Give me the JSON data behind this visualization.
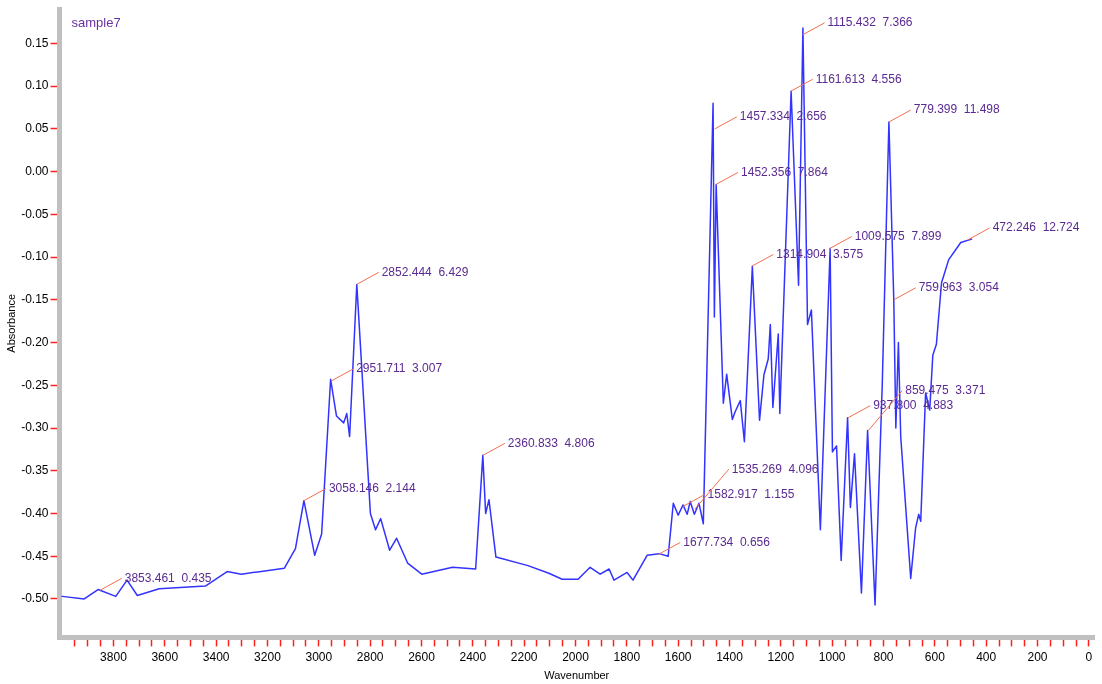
{
  "chart_data": {
    "type": "line",
    "title": "sample7",
    "xlabel": "Wavenumber",
    "ylabel": "Absorbance",
    "xlim": [
      4010,
      -20
    ],
    "ylim": [
      -0.545,
      0.19
    ],
    "xticks": [
      {
        "value": 3950,
        "label": null
      },
      {
        "value": 3900,
        "label": null
      },
      {
        "value": 3850,
        "label": null
      },
      {
        "value": 3800,
        "label": "3800"
      },
      {
        "value": 3750,
        "label": null
      },
      {
        "value": 3700,
        "label": null
      },
      {
        "value": 3650,
        "label": null
      },
      {
        "value": 3600,
        "label": "3600"
      },
      {
        "value": 3550,
        "label": null
      },
      {
        "value": 3500,
        "label": null
      },
      {
        "value": 3450,
        "label": null
      },
      {
        "value": 3400,
        "label": "3400"
      },
      {
        "value": 3350,
        "label": null
      },
      {
        "value": 3300,
        "label": null
      },
      {
        "value": 3250,
        "label": null
      },
      {
        "value": 3200,
        "label": "3200"
      },
      {
        "value": 3150,
        "label": null
      },
      {
        "value": 3100,
        "label": null
      },
      {
        "value": 3050,
        "label": null
      },
      {
        "value": 3000,
        "label": "3000"
      },
      {
        "value": 2950,
        "label": null
      },
      {
        "value": 2900,
        "label": null
      },
      {
        "value": 2850,
        "label": null
      },
      {
        "value": 2800,
        "label": "2800"
      },
      {
        "value": 2750,
        "label": null
      },
      {
        "value": 2700,
        "label": null
      },
      {
        "value": 2650,
        "label": null
      },
      {
        "value": 2600,
        "label": "2600"
      },
      {
        "value": 2550,
        "label": null
      },
      {
        "value": 2500,
        "label": null
      },
      {
        "value": 2450,
        "label": null
      },
      {
        "value": 2400,
        "label": "2400"
      },
      {
        "value": 2350,
        "label": null
      },
      {
        "value": 2300,
        "label": null
      },
      {
        "value": 2250,
        "label": null
      },
      {
        "value": 2200,
        "label": "2200"
      },
      {
        "value": 2150,
        "label": null
      },
      {
        "value": 2100,
        "label": null
      },
      {
        "value": 2050,
        "label": null
      },
      {
        "value": 2000,
        "label": "2000"
      },
      {
        "value": 1950,
        "label": null
      },
      {
        "value": 1900,
        "label": null
      },
      {
        "value": 1850,
        "label": null
      },
      {
        "value": 1800,
        "label": "1800"
      },
      {
        "value": 1750,
        "label": null
      },
      {
        "value": 1700,
        "label": null
      },
      {
        "value": 1650,
        "label": null
      },
      {
        "value": 1600,
        "label": "1600"
      },
      {
        "value": 1550,
        "label": null
      },
      {
        "value": 1500,
        "label": null
      },
      {
        "value": 1450,
        "label": null
      },
      {
        "value": 1400,
        "label": "1400"
      },
      {
        "value": 1350,
        "label": null
      },
      {
        "value": 1300,
        "label": null
      },
      {
        "value": 1250,
        "label": null
      },
      {
        "value": 1200,
        "label": "1200"
      },
      {
        "value": 1150,
        "label": null
      },
      {
        "value": 1100,
        "label": null
      },
      {
        "value": 1050,
        "label": null
      },
      {
        "value": 1000,
        "label": "1000"
      },
      {
        "value": 950,
        "label": null
      },
      {
        "value": 900,
        "label": null
      },
      {
        "value": 850,
        "label": null
      },
      {
        "value": 800,
        "label": "800"
      },
      {
        "value": 750,
        "label": null
      },
      {
        "value": 700,
        "label": null
      },
      {
        "value": 650,
        "label": null
      },
      {
        "value": 600,
        "label": "600"
      },
      {
        "value": 550,
        "label": null
      },
      {
        "value": 500,
        "label": null
      },
      {
        "value": 450,
        "label": null
      },
      {
        "value": 400,
        "label": "400"
      },
      {
        "value": 350,
        "label": null
      },
      {
        "value": 300,
        "label": null
      },
      {
        "value": 250,
        "label": null
      },
      {
        "value": 200,
        "label": "200"
      },
      {
        "value": 150,
        "label": null
      },
      {
        "value": 100,
        "label": null
      },
      {
        "value": 50,
        "label": null
      },
      {
        "value": 0,
        "label": "0"
      }
    ],
    "yticks": [
      {
        "value": 0.15,
        "label": "0.15"
      },
      {
        "value": 0.1,
        "label": "0.10"
      },
      {
        "value": 0.05,
        "label": "0.05"
      },
      {
        "value": 0,
        "label": "0.00"
      },
      {
        "value": -0.05,
        "label": "-0.05"
      },
      {
        "value": -0.1,
        "label": "-0.10"
      },
      {
        "value": -0.15,
        "label": "-0.15"
      },
      {
        "value": -0.2,
        "label": "-0.20"
      },
      {
        "value": -0.25,
        "label": "-0.25"
      },
      {
        "value": -0.3,
        "label": "-0.30"
      },
      {
        "value": -0.35,
        "label": "-0.35"
      },
      {
        "value": -0.4,
        "label": "-0.40"
      },
      {
        "value": -0.45,
        "label": "-0.45"
      },
      {
        "value": -0.5,
        "label": "-0.50"
      }
    ],
    "grid": false,
    "legend": false,
    "marker": "none",
    "line_style": "solid",
    "series": [
      {
        "color": "#3333ff",
        "x": [
          4000,
          3914,
          3860,
          3791,
          3747,
          3707,
          3622,
          3442,
          3357,
          3302,
          3134,
          3091,
          3058,
          3016,
          2989,
          2954,
          2931,
          2903,
          2891,
          2880,
          2852,
          2799,
          2779,
          2759,
          2724,
          2697,
          2654,
          2599,
          2479,
          2389,
          2361,
          2350,
          2337,
          2310,
          2185,
          2104,
          2052,
          1990,
          1943,
          1904,
          1869,
          1850,
          1799,
          1776,
          1721,
          1674,
          1639,
          1619,
          1600,
          1581,
          1565,
          1553,
          1537,
          1519,
          1502,
          1464,
          1459,
          1452,
          1424,
          1411,
          1389,
          1378,
          1358,
          1342,
          1311,
          1283,
          1266,
          1249,
          1241,
          1231,
          1210,
          1204,
          1160,
          1131,
          1114,
          1096,
          1081,
          1046,
          1008,
          999,
          983,
          965,
          940,
          929,
          913,
          886,
          862,
          833,
          805,
          779,
          760,
          752,
          742,
          733,
          694,
          675,
          663,
          655,
          636,
          620,
          608,
          594,
          574,
          546,
          499,
          457
        ],
        "values": [
          -0.497,
          -0.5,
          -0.489,
          -0.497,
          -0.478,
          -0.496,
          -0.488,
          -0.485,
          -0.468,
          -0.471,
          -0.464,
          -0.441,
          -0.385,
          -0.449,
          -0.424,
          -0.243,
          -0.286,
          -0.294,
          -0.283,
          -0.31,
          -0.132,
          -0.4,
          -0.419,
          -0.406,
          -0.443,
          -0.429,
          -0.458,
          -0.471,
          -0.463,
          -0.465,
          -0.332,
          -0.4,
          -0.384,
          -0.451,
          -0.461,
          -0.47,
          -0.477,
          -0.477,
          -0.463,
          -0.471,
          -0.465,
          -0.478,
          -0.469,
          -0.478,
          -0.449,
          -0.447,
          -0.45,
          -0.388,
          -0.402,
          -0.39,
          -0.401,
          -0.386,
          -0.401,
          -0.388,
          -0.412,
          0.08,
          -0.17,
          -0.015,
          -0.271,
          -0.237,
          -0.29,
          -0.281,
          -0.268,
          -0.316,
          -0.111,
          -0.291,
          -0.238,
          -0.219,
          -0.179,
          -0.276,
          -0.19,
          -0.283,
          0.094,
          -0.133,
          0.168,
          -0.179,
          -0.162,
          -0.419,
          -0.09,
          -0.328,
          -0.321,
          -0.455,
          -0.288,
          -0.393,
          -0.33,
          -0.493,
          -0.303,
          -0.507,
          -0.25,
          0.058,
          -0.15,
          -0.3,
          -0.2,
          -0.31,
          -0.476,
          -0.417,
          -0.401,
          -0.409,
          -0.259,
          -0.279,
          -0.215,
          -0.202,
          -0.13,
          -0.103,
          -0.083,
          -0.079
        ]
      }
    ],
    "annotations": [
      {
        "text": "3853.461  0.435",
        "x": 3853.461,
        "y": -0.49
      },
      {
        "text": "3058.146  2.144",
        "x": 3058.146,
        "y": -0.385
      },
      {
        "text": "2951.711  3.007",
        "x": 2951.711,
        "y": -0.245
      },
      {
        "text": "2852.444  6.429",
        "x": 2852.444,
        "y": -0.132
      },
      {
        "text": "2360.833  4.806",
        "x": 2360.833,
        "y": -0.332
      },
      {
        "text": "1677.734  0.656",
        "x": 1677.734,
        "y": -0.448
      },
      {
        "text": "1582.917  1.155",
        "x": 1582.917,
        "y": -0.392
      },
      {
        "text": "1535.269  4.096",
        "x": 1535.269,
        "y": -0.395
      },
      {
        "text": "1457.334  2.656",
        "x": 1457.334,
        "y": 0.05
      },
      {
        "text": "1452.356  7.864",
        "x": 1452.356,
        "y": -0.015
      },
      {
        "text": "1314.904  3.575",
        "x": 1314.904,
        "y": -0.111
      },
      {
        "text": "1161.613  4.556",
        "x": 1161.613,
        "y": 0.094
      },
      {
        "text": "1115.432  7.366",
        "x": 1115.432,
        "y": 0.16
      },
      {
        "text": "1009.575  7.899",
        "x": 1009.575,
        "y": -0.09
      },
      {
        "text": "937.800  4.883",
        "x": 937.8,
        "y": -0.288
      },
      {
        "text": "859.475  3.371",
        "x": 859.475,
        "y": -0.303
      },
      {
        "text": "779.399  11.498",
        "x": 779.399,
        "y": 0.058
      },
      {
        "text": "759.963  3.054",
        "x": 759.963,
        "y": -0.15
      },
      {
        "text": "472.246  12.724",
        "x": 472.246,
        "y": -0.08
      }
    ]
  }
}
